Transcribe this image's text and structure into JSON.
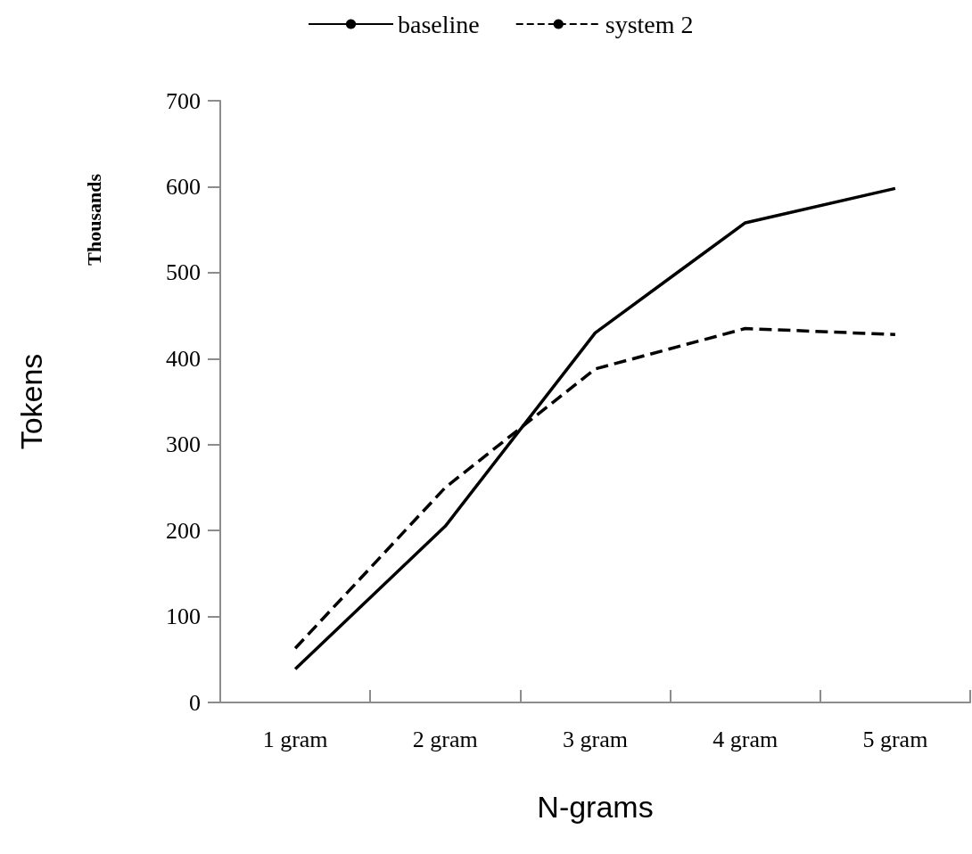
{
  "chart_data": {
    "type": "line",
    "xlabel": "N-grams",
    "ylabel": "Tokens",
    "annotations": [
      "Thousands"
    ],
    "categories": [
      "1 gram",
      "2 gram",
      "3 gram",
      "4 gram",
      "5 gram"
    ],
    "series": [
      {
        "name": "baseline",
        "color": "#000000",
        "line_style": "solid",
        "values": [
          39,
          205,
          430,
          558,
          598
        ]
      },
      {
        "name": "system 2",
        "color": "#000000",
        "line_style": "dashed",
        "values": [
          63,
          250,
          388,
          435,
          428
        ]
      }
    ],
    "ylim": [
      0,
      700
    ],
    "yticks": [
      0,
      100,
      200,
      300,
      400,
      500,
      600,
      700
    ],
    "grid": false,
    "legend": "top",
    "marker": "none"
  }
}
